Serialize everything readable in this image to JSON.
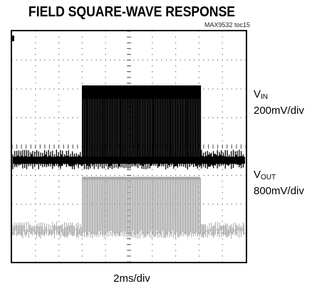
{
  "title": "FIELD SQUARE-WAVE RESPONSE",
  "figure_id": "MAX9532 toc15",
  "chart_data": {
    "type": "line",
    "title": "FIELD SQUARE-WAVE RESPONSE",
    "xlabel": "2ms/div",
    "x_divisions": 10,
    "y_divisions": 8,
    "grid": true,
    "series": [
      {
        "name_main": "V",
        "name_sub": "IN",
        "scale": "200mV/div",
        "color": "#000000",
        "low_level_div": 3.55,
        "high_level_div": 6.1,
        "high_start_div": 3.0,
        "high_end_div": 8.05,
        "line_rate_div": 0.085
      },
      {
        "name_main": "V",
        "name_sub": "OUT",
        "scale": "800mV/div",
        "color": "#a8a8a8",
        "low_level_div": 1.1,
        "high_level_div": 2.95,
        "high_start_div": 3.0,
        "high_end_div": 8.05,
        "line_rate_div": 0.085
      }
    ]
  }
}
